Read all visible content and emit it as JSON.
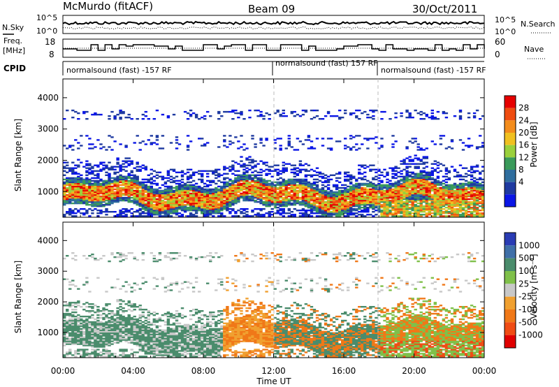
{
  "header": {
    "station": "McMurdo (fitACF)",
    "beam": "Beam 09",
    "date": "30/Oct/2011"
  },
  "top_panels": {
    "nsky": {
      "left_label": "N.Sky",
      "right_label": "N.Search",
      "left_ticks": [
        "10^5",
        "10^0"
      ],
      "right_ticks": [
        "10^5",
        "10^0"
      ]
    },
    "freq": {
      "left_label_1": "Freq.",
      "left_label_2": "[MHz]",
      "right_label": "Nave",
      "left_ticks": [
        "18",
        "8"
      ],
      "right_ticks": [
        "60",
        "0"
      ]
    },
    "cpid": {
      "label": "CPID",
      "segments": [
        {
          "text": "normalsound (fast) -157 RF",
          "start_hour": 0
        },
        {
          "text": "normalsound (fast) 157 RF",
          "start_hour": 12
        },
        {
          "text": "normalsound (fast) -157 RF",
          "start_hour": 18
        }
      ]
    }
  },
  "chart_data": [
    {
      "type": "heatmap",
      "name": "power",
      "ylabel": "Slant Range [km]",
      "yticks": [
        1000,
        2000,
        3000,
        4000
      ],
      "ylim": [
        180,
        4600
      ],
      "xlim_hours": [
        0,
        24
      ],
      "colorbar": {
        "label": "Power [dB]",
        "ticks": [
          "4",
          "8",
          "12",
          "16",
          "20",
          "24",
          "28"
        ],
        "colors": [
          "#0a16e6",
          "#1e3aa0",
          "#2f6e9e",
          "#3a9a5a",
          "#9ad03c",
          "#f0c020",
          "#f38c1c",
          "#ef4c10",
          "#e60000"
        ]
      }
    },
    {
      "type": "heatmap",
      "name": "velocity",
      "ylabel": "Slant Range [km]",
      "yticks": [
        1000,
        2000,
        3000,
        4000
      ],
      "ylim": [
        180,
        4600
      ],
      "xlim_hours": [
        0,
        24
      ],
      "colorbar": {
        "label": "Velocity [m s⁻¹]",
        "ticks": [
          "1000",
          "500",
          "100",
          "25",
          "-25",
          "-100",
          "-500",
          "-1000"
        ],
        "colors": [
          "#2a3cb4",
          "#3f6fa8",
          "#4a8c6c",
          "#7fc04a",
          "#c8c8c8",
          "#f0a030",
          "#f07818",
          "#f04c14",
          "#e00000"
        ]
      }
    }
  ],
  "x_axis": {
    "ticks": [
      "00:00",
      "04:00",
      "08:00",
      "12:00",
      "16:00",
      "20:00",
      "00:00"
    ],
    "label": "Time UT"
  }
}
